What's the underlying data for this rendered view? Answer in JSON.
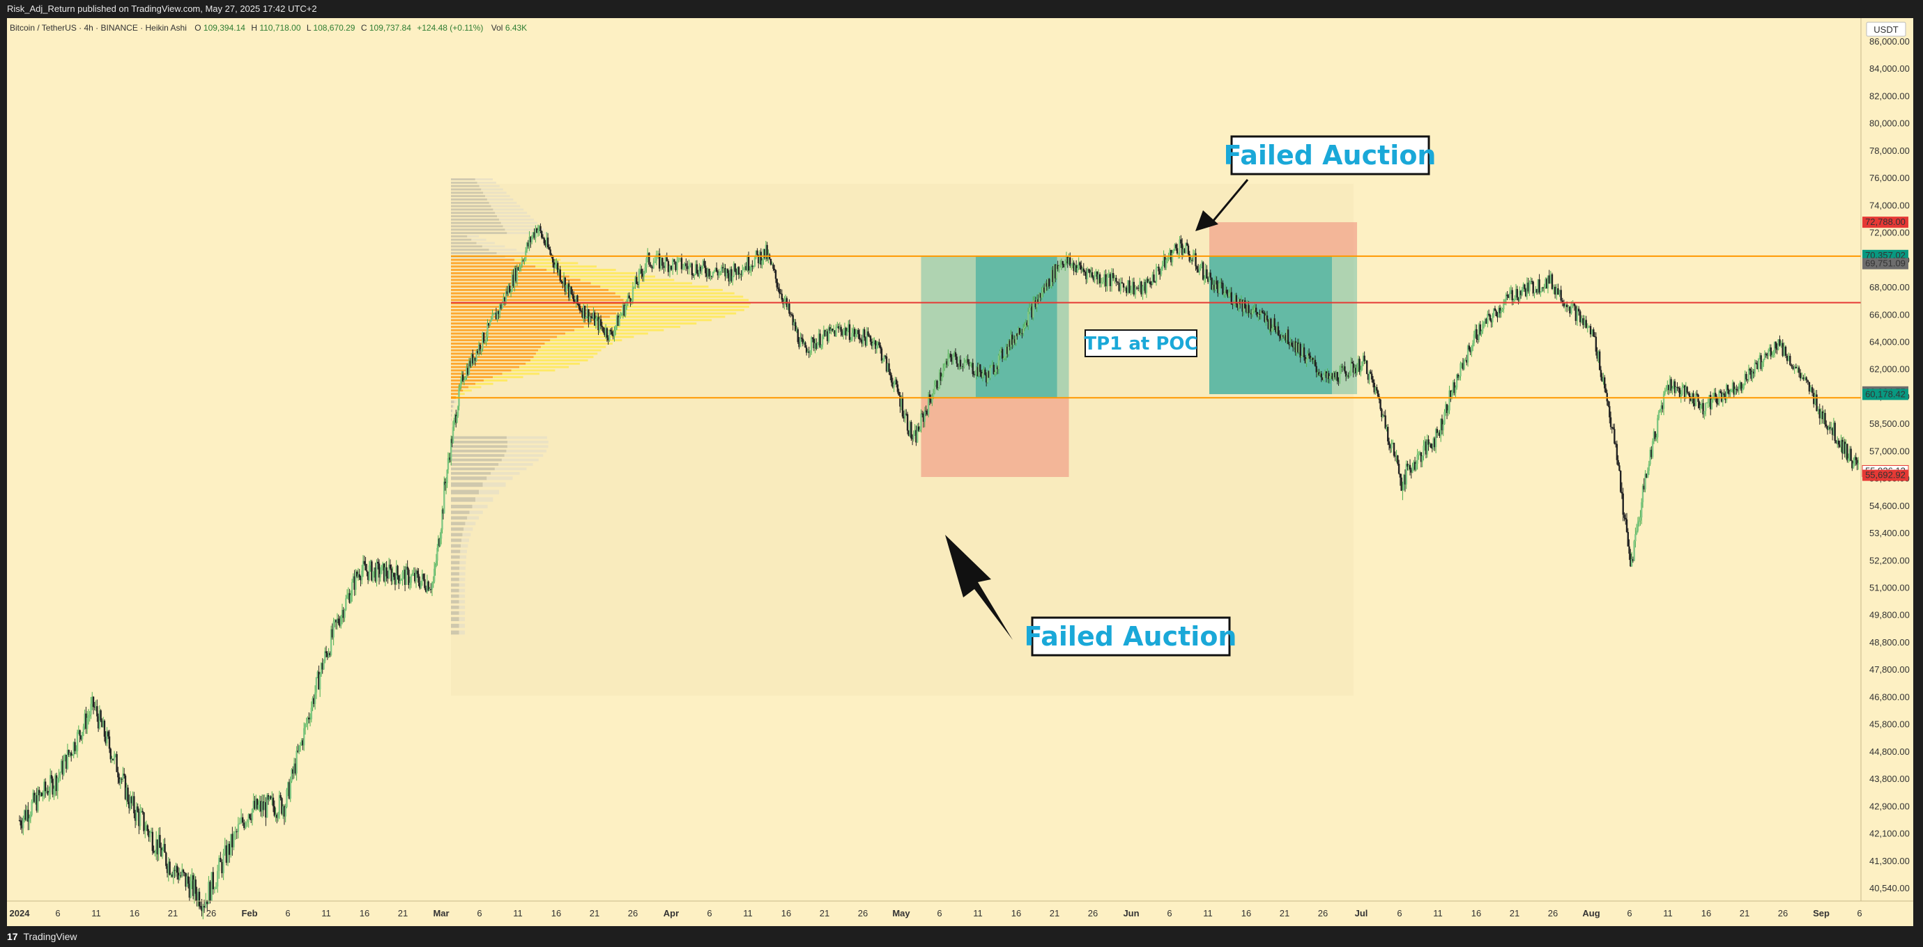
{
  "header": {
    "published": "Risk_Adj_Return published on TradingView.com, May 27, 2025 17:42 UTC+2"
  },
  "footer": {
    "brand": "TradingView",
    "logo": "tradingview-logo-icon"
  },
  "legend": {
    "symbol": "Bitcoin / TetherUS · 4h · BINANCE · Heikin Ashi",
    "o_label": "O",
    "o_val": "109,394.14",
    "h_label": "H",
    "h_val": "110,718.00",
    "l_label": "L",
    "l_val": "108,670.29",
    "c_label": "C",
    "c_val": "109,737.84",
    "change": "+124.48 (+0.11%)",
    "vol_label": "Vol",
    "vol_val": "6.43K"
  },
  "currency": "USDT",
  "annotations": {
    "failed_top": "Failed Auction",
    "failed_bottom": "Failed Auction",
    "tp1": "TP1 at POC"
  },
  "colors": {
    "bg": "#fdf0c3",
    "up": "#4caf50",
    "down": "#222222",
    "vah": "#ff9800",
    "poc": "#e53935",
    "target": "#26a69a",
    "stop": "#ef9a9a",
    "accent": "#1aa8d8"
  },
  "chart_data": {
    "type": "candlestick",
    "chart_style": "Heikin Ashi",
    "symbol": "BTCUSDT",
    "timeframe": "4h",
    "x_ticks": [
      "2024",
      "6",
      "11",
      "16",
      "21",
      "26",
      "Feb",
      "6",
      "11",
      "16",
      "21",
      "Mar",
      "6",
      "11",
      "16",
      "21",
      "26",
      "Apr",
      "6",
      "11",
      "16",
      "21",
      "26",
      "May",
      "6",
      "11",
      "16",
      "21",
      "26",
      "Jun",
      "6",
      "11",
      "16",
      "21",
      "26",
      "Jul",
      "6",
      "11",
      "16",
      "21",
      "26",
      "Aug",
      "6",
      "11",
      "16",
      "21",
      "26",
      "Sep",
      "6"
    ],
    "y_ticks": [
      "86,000.00",
      "84,000.00",
      "82,000.00",
      "80,000.00",
      "78,000.00",
      "76,000.00",
      "74,000.00",
      "72,000.00",
      "70,000.00",
      "68,000.00",
      "66,000.00",
      "64,000.00",
      "62,000.00",
      "60,000.00",
      "58,500.00",
      "57,000.00",
      "55,500.00",
      "54,600.00",
      "53,400.00",
      "52,200.00",
      "51,000.00",
      "49,800.00",
      "48,800.00",
      "47,800.00",
      "46,800.00",
      "45,800.00",
      "44,800.00",
      "43,800.00",
      "42,900.00",
      "42,100.00",
      "41,300.00",
      "40,540.00"
    ],
    "price_labels": [
      {
        "text": "72,788.00",
        "color": "#e53935"
      },
      {
        "text": "70,357.02",
        "color": "#089981"
      },
      {
        "text": "69,751.09",
        "color": "#6d6d6d"
      },
      {
        "text": "60,364.55",
        "color": "#6d6d6d"
      },
      {
        "text": "60,178.42",
        "color": "#089981"
      },
      {
        "text": "55,926.12",
        "color": "#ffffff"
      },
      {
        "text": "55,692.92",
        "color": "#e53935"
      }
    ],
    "levels": {
      "vah": 70300,
      "poc": 66900,
      "val": 59950
    },
    "series": [
      {
        "date": "2024-01-01",
        "close": 42500
      },
      {
        "date": "2024-01-06",
        "close": 43800
      },
      {
        "date": "2024-01-11",
        "close": 46500
      },
      {
        "date": "2024-01-16",
        "close": 43000
      },
      {
        "date": "2024-01-21",
        "close": 41300
      },
      {
        "date": "2024-01-26",
        "close": 40200
      },
      {
        "date": "2024-02-01",
        "close": 42800
      },
      {
        "date": "2024-02-06",
        "close": 43000
      },
      {
        "date": "2024-02-11",
        "close": 48000
      },
      {
        "date": "2024-02-16",
        "close": 51800
      },
      {
        "date": "2024-02-21",
        "close": 51600
      },
      {
        "date": "2024-02-26",
        "close": 51200
      },
      {
        "date": "2024-03-01",
        "close": 61500
      },
      {
        "date": "2024-03-06",
        "close": 66500
      },
      {
        "date": "2024-03-11",
        "close": 72500
      },
      {
        "date": "2024-03-16",
        "close": 67000
      },
      {
        "date": "2024-03-21",
        "close": 64500
      },
      {
        "date": "2024-03-26",
        "close": 70000
      },
      {
        "date": "2024-04-01",
        "close": 69500
      },
      {
        "date": "2024-04-06",
        "close": 69000
      },
      {
        "date": "2024-04-11",
        "close": 70500
      },
      {
        "date": "2024-04-16",
        "close": 63500
      },
      {
        "date": "2024-04-21",
        "close": 65000
      },
      {
        "date": "2024-04-26",
        "close": 64000
      },
      {
        "date": "2024-05-01",
        "close": 57500
      },
      {
        "date": "2024-05-06",
        "close": 63000
      },
      {
        "date": "2024-05-11",
        "close": 61500
      },
      {
        "date": "2024-05-16",
        "close": 65500
      },
      {
        "date": "2024-05-21",
        "close": 70000
      },
      {
        "date": "2024-05-26",
        "close": 68800
      },
      {
        "date": "2024-06-01",
        "close": 67800
      },
      {
        "date": "2024-06-06",
        "close": 71200
      },
      {
        "date": "2024-06-11",
        "close": 68000
      },
      {
        "date": "2024-06-16",
        "close": 66300
      },
      {
        "date": "2024-06-21",
        "close": 64200
      },
      {
        "date": "2024-06-26",
        "close": 61200
      },
      {
        "date": "2024-07-01",
        "close": 62500
      },
      {
        "date": "2024-07-06",
        "close": 55500
      },
      {
        "date": "2024-07-11",
        "close": 58000
      },
      {
        "date": "2024-07-16",
        "close": 64500
      },
      {
        "date": "2024-07-21",
        "close": 67500
      },
      {
        "date": "2024-07-26",
        "close": 68500
      },
      {
        "date": "2024-08-01",
        "close": 64500
      },
      {
        "date": "2024-08-06",
        "close": 52000
      },
      {
        "date": "2024-08-11",
        "close": 61000
      },
      {
        "date": "2024-08-16",
        "close": 59500
      },
      {
        "date": "2024-08-21",
        "close": 61000
      },
      {
        "date": "2024-08-26",
        "close": 64000
      },
      {
        "date": "2024-09-01",
        "close": 59000
      },
      {
        "date": "2024-09-06",
        "close": 55900
      }
    ],
    "positions": [
      {
        "type": "long",
        "entry": 59950,
        "target": 70300,
        "stop": 55600,
        "from": "2024-05-02",
        "to": "2024-05-22"
      },
      {
        "type": "short",
        "entry": 70300,
        "target": 60200,
        "stop": 72788,
        "from": "2024-06-10",
        "to": "2024-06-30"
      }
    ]
  }
}
